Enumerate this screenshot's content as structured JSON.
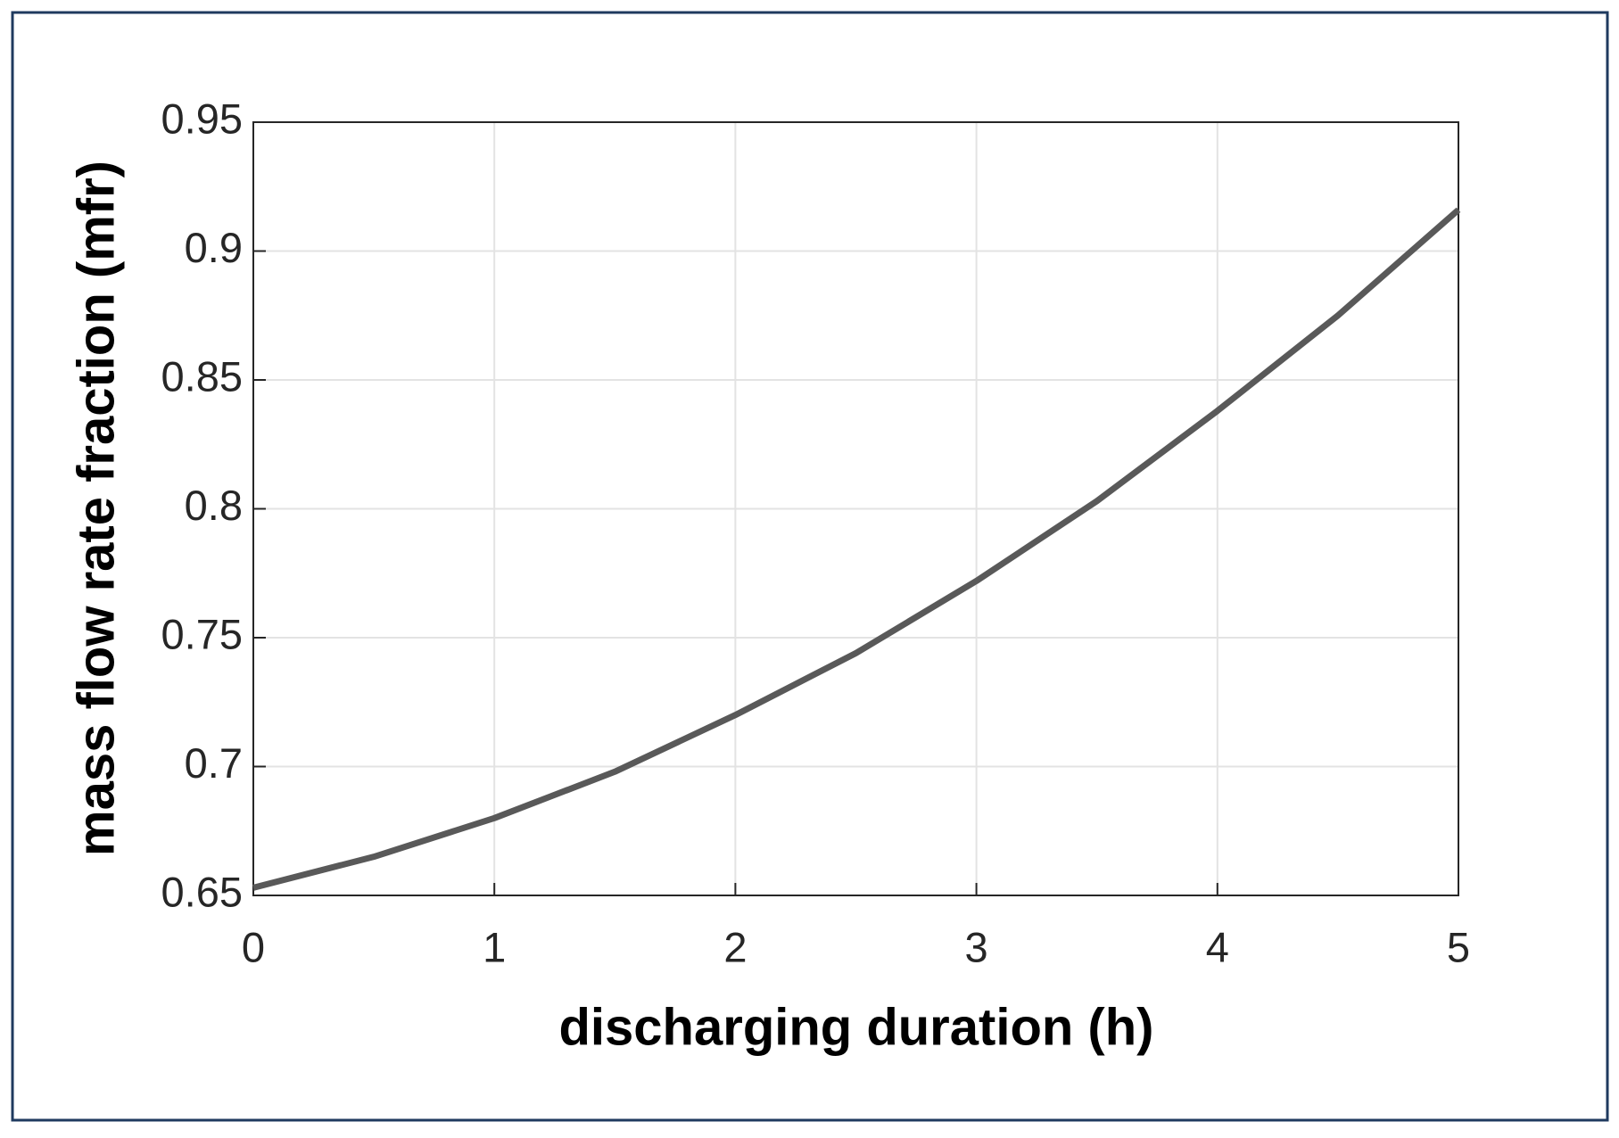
{
  "chart_data": {
    "type": "line",
    "x_label": "discharging duration (h)",
    "y_label": "mass flow rate fraction (mfr)",
    "x": [
      0,
      0.5,
      1,
      1.5,
      2,
      2.5,
      3,
      3.5,
      4,
      4.5,
      5
    ],
    "series": [
      {
        "color": "#595959",
        "values": [
          0.653,
          0.665,
          0.68,
          0.698,
          0.72,
          0.744,
          0.772,
          0.803,
          0.838,
          0.875,
          0.916
        ]
      }
    ],
    "xlim": [
      0,
      5
    ],
    "xticks": [
      0,
      1,
      2,
      3,
      4,
      5
    ],
    "ylim": [
      0.65,
      0.95
    ],
    "yticks": [
      0.65,
      0.7,
      0.75,
      0.8,
      0.85,
      0.9,
      0.95
    ],
    "grid": true
  }
}
